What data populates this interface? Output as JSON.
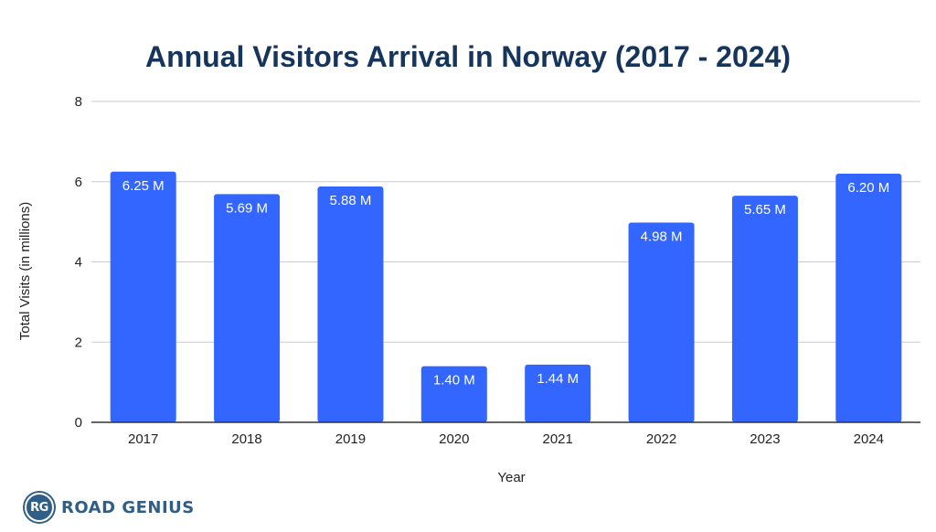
{
  "brand": {
    "logo_text": "RG",
    "name": "ROAD GENIUS",
    "color": "#2f5e87"
  },
  "chart_data": {
    "type": "bar",
    "title": "Annual Visitors Arrival in Norway (2017 - 2024)",
    "xlabel": "Year",
    "ylabel": "Total Visits (in millions)",
    "ylim": [
      0,
      8
    ],
    "yticks": [
      0,
      2,
      4,
      6,
      8
    ],
    "grid": true,
    "categories": [
      "2017",
      "2018",
      "2019",
      "2020",
      "2021",
      "2022",
      "2023",
      "2024"
    ],
    "values": [
      6.25,
      5.69,
      5.88,
      1.4,
      1.44,
      4.98,
      5.65,
      6.2
    ],
    "data_labels": [
      "6.25 M",
      "5.69 M",
      "5.88 M",
      "1.40 M",
      "1.44 M",
      "4.98 M",
      "5.65 M",
      "6.20 M"
    ],
    "bar_color": "#3366ff",
    "title_color": "#16355c"
  }
}
